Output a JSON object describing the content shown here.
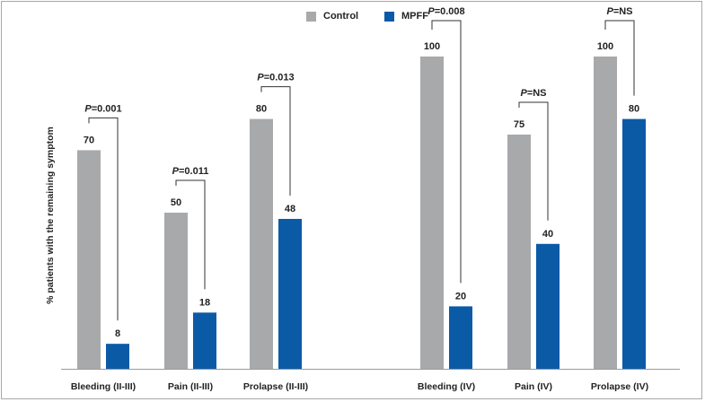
{
  "chart_data": {
    "type": "bar",
    "ylabel": "% patients with the remaining symptom",
    "ylim": [
      0,
      100
    ],
    "grid": false,
    "legend_position": "top-center",
    "categories": [
      "Bleeding (II-III)",
      "Pain (II-III)",
      "Prolapse (II-III)",
      "Bleeding (IV)",
      "Pain (IV)",
      "Prolapse (IV)"
    ],
    "series": [
      {
        "name": "Control",
        "color": "#a8a9ab",
        "values": [
          70,
          50,
          80,
          100,
          75,
          100
        ]
      },
      {
        "name": "MPFF",
        "color": "#0b5aa6",
        "values": [
          8,
          18,
          48,
          20,
          40,
          80
        ]
      }
    ],
    "annotations": [
      {
        "category": "Bleeding (II-III)",
        "p_prefix": "P",
        "p_value": "=0.001"
      },
      {
        "category": "Pain (II-III)",
        "p_prefix": "P",
        "p_value": "=0.011"
      },
      {
        "category": "Prolapse (II-III)",
        "p_prefix": "P",
        "p_value": "=0.013"
      },
      {
        "category": "Bleeding (IV)",
        "p_prefix": "P",
        "p_value": "=0.008"
      },
      {
        "category": "Pain (IV)",
        "p_prefix": "P",
        "p_value": "=NS"
      },
      {
        "category": "Prolapse (IV)",
        "p_prefix": "P",
        "p_value": "=NS"
      }
    ]
  }
}
